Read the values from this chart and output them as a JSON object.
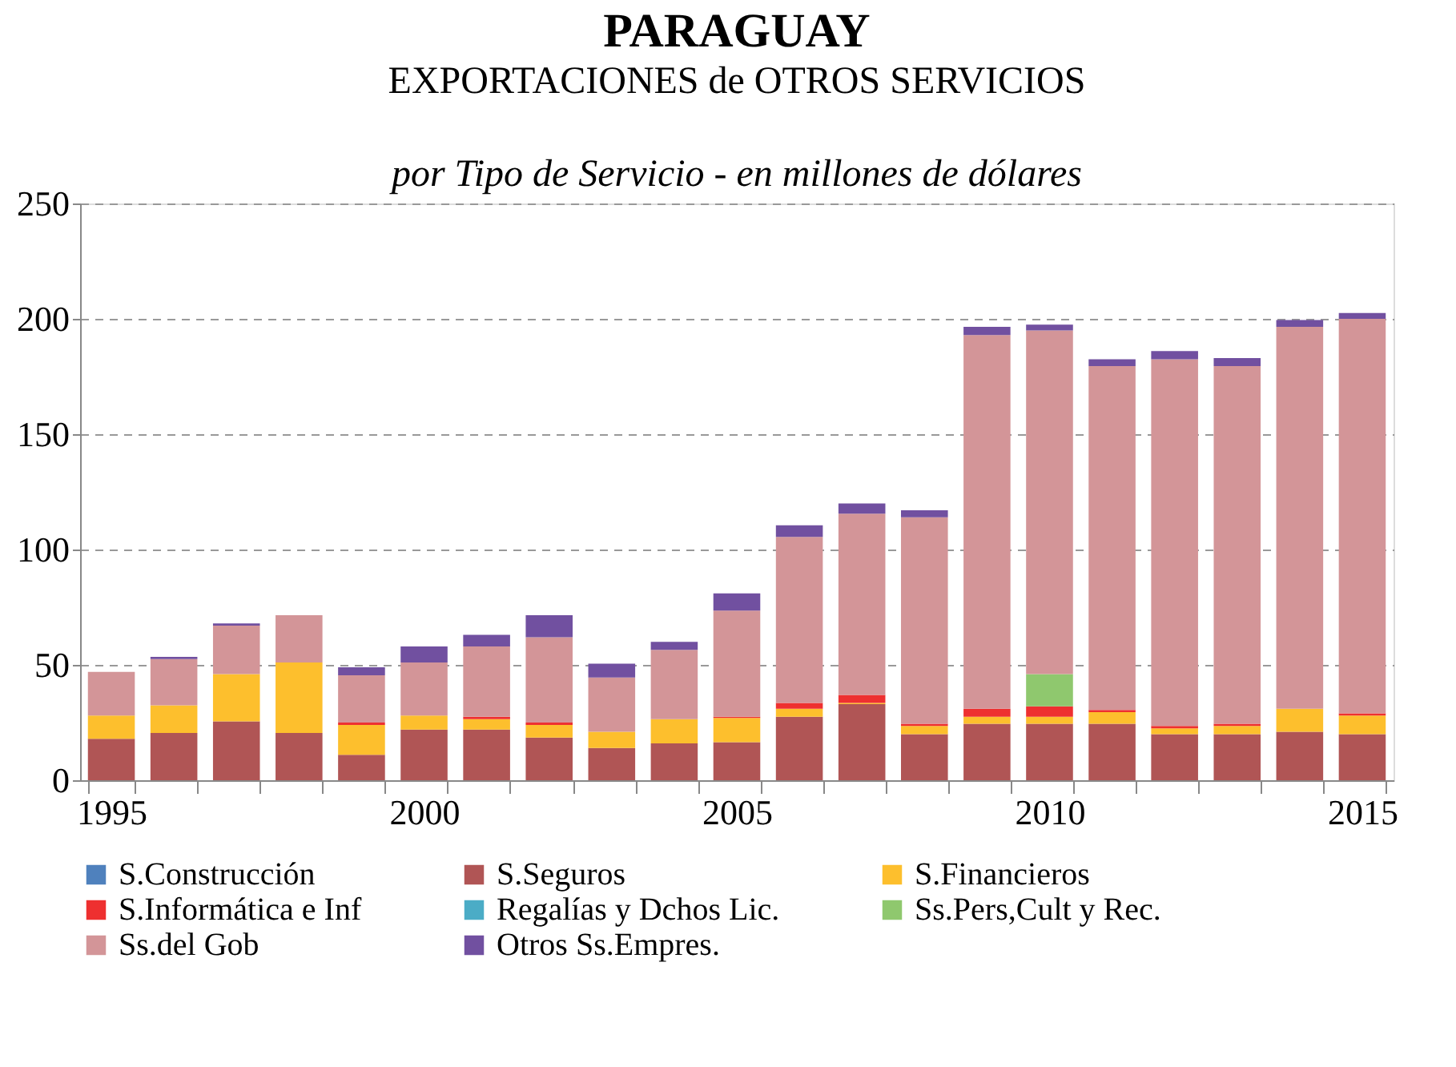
{
  "chart_data": {
    "type": "bar",
    "stacked": true,
    "title": "PARAGUAY",
    "subtitle": "EXPORTACIONES de OTROS SERVICIOS",
    "annotations": [
      "por Tipo de Servicio - en millones de dólares"
    ],
    "categories": [
      "1995",
      null,
      null,
      null,
      null,
      "2000",
      null,
      null,
      null,
      null,
      "2005",
      null,
      null,
      null,
      null,
      "2010",
      null,
      null,
      null,
      null,
      "2015"
    ],
    "ylim": [
      0,
      250
    ],
    "yticks": [
      0,
      50,
      100,
      150,
      200,
      250
    ],
    "grid": "y",
    "legend": "bottom",
    "series": [
      {
        "name": "S.Construcción",
        "color": "#4f81bd",
        "values": [
          0,
          0,
          0,
          0,
          0,
          0,
          0,
          0,
          0,
          0,
          0,
          0,
          0,
          0,
          0,
          0,
          0,
          0,
          0,
          0,
          0
        ]
      },
      {
        "name": "S.Seguros",
        "color": "#b05555",
        "values": [
          18,
          20.5,
          25.5,
          20.5,
          11,
          22,
          22,
          18.5,
          14,
          16,
          16.5,
          27.5,
          33,
          20,
          24.5,
          24.5,
          24.5,
          20,
          20,
          21,
          20
        ]
      },
      {
        "name": "S.Financieros",
        "color": "#fdbf2d",
        "values": [
          10,
          12,
          20.5,
          30.5,
          13,
          6,
          4.5,
          5.5,
          7,
          10.5,
          10.5,
          3.5,
          0.5,
          3.5,
          3,
          3,
          5,
          2.5,
          3.5,
          10,
          8
        ]
      },
      {
        "name": "S.Informática e Inf",
        "color": "#ee3030",
        "values": [
          0,
          0,
          0,
          0,
          1,
          0,
          1,
          1,
          0,
          0,
          0.5,
          2.5,
          3.5,
          1,
          3.5,
          4.5,
          1,
          1,
          1,
          0,
          1
        ]
      },
      {
        "name": "Regalías y Dchos Lic.",
        "color": "#4bacc6",
        "values": [
          0,
          0,
          0,
          0,
          0,
          0,
          0,
          0,
          0,
          0,
          0,
          0,
          0,
          0,
          0,
          0,
          0,
          0,
          0,
          0,
          0
        ]
      },
      {
        "name": "Ss.Pers,Cult y Rec.",
        "color": "#8fc86e",
        "values": [
          0,
          0,
          0,
          0,
          0,
          0,
          0,
          0,
          0,
          0,
          0,
          0,
          0,
          0,
          0,
          14,
          0,
          0,
          0,
          0,
          0
        ]
      },
      {
        "name": "Ss.del Gob",
        "color": "#d39598",
        "values": [
          19,
          20,
          21,
          20.5,
          20.5,
          23,
          30.5,
          37,
          23.5,
          30,
          46,
          72,
          78.5,
          89.5,
          162,
          149,
          149,
          159,
          155,
          165.5,
          171
        ]
      },
      {
        "name": "Otros Ss.Empres.",
        "color": "#7150a0",
        "values": [
          0,
          1,
          1,
          0,
          3.5,
          7,
          5,
          9.5,
          6,
          3.5,
          7.5,
          5,
          4.5,
          3,
          3.5,
          2.5,
          3,
          3.5,
          3.5,
          3,
          2.5
        ]
      }
    ]
  }
}
